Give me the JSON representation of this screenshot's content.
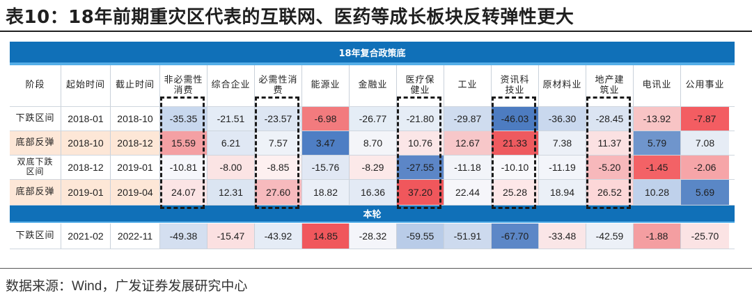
{
  "title": "表10：18年前期重灾区代表的互联网、医药等成长板块反转弹性更大",
  "band_top": "18年复合政策底",
  "band_mid": "本轮",
  "headers": [
    "阶段",
    "起始时间",
    "截止时间",
    "非必需性消费",
    "综合企业",
    "必需性消费",
    "能源业",
    "金融业",
    "医疗保健业",
    "工业",
    "资讯科技业",
    "原材料业",
    "地产建筑业",
    "电讯业",
    "公用事业"
  ],
  "rows": [
    {
      "stage": "下跌区间",
      "start": "2018-01",
      "end": "2018-10",
      "values": [
        "-35.35",
        "-21.51",
        "-23.57",
        "-6.98",
        "-26.77",
        "-21.80",
        "-29.87",
        "-46.03",
        "-36.30",
        "-28.45",
        "-13.92",
        "-7.87"
      ],
      "colors": [
        "#c8d8ee",
        "#e4ecf6",
        "#dde6f3",
        "#f27b7e",
        "#e5edf6",
        "#e6edf6",
        "#cfdcef",
        "#4d7cc1",
        "#c9d8ee",
        "#dbe4f2",
        "#f8c4c5",
        "#f35d62"
      ]
    },
    {
      "stage": "底部反弹",
      "start": "2018-10",
      "end": "2018-12",
      "values": [
        "15.59",
        "6.21",
        "7.57",
        "3.47",
        "8.70",
        "10.76",
        "12.67",
        "21.33",
        "7.38",
        "11.37",
        "5.79",
        "7.08"
      ],
      "colors": [
        "#f4a0a3",
        "#e0e8f4",
        "#eef2f8",
        "#4e7ec4",
        "#f4f5f9",
        "#fbe6e7",
        "#f7c7c9",
        "#ee5a5f",
        "#ecf0f7",
        "#fbe1e2",
        "#6f95cc",
        "#e6ecf5"
      ],
      "stage_bg": "#fde7d7"
    },
    {
      "stage": "双底下跌区间",
      "start": "2018-12",
      "end": "2019-01",
      "values": [
        "-10.81",
        "-8.00",
        "-8.85",
        "-15.76",
        "-8.29",
        "-27.55",
        "-11.18",
        "-10.10",
        "-11.19",
        "-5.20",
        "-1.45",
        "-2.06"
      ],
      "colors": [
        "#f6f7fb",
        "#fbe4e4",
        "#fdf0f0",
        "#e1e8f4",
        "#fce9e9",
        "#5c86c7",
        "#f2f4f9",
        "#f8f8fb",
        "#f3f5fa",
        "#f7b8bb",
        "#f36266",
        "#f6a5a8"
      ]
    },
    {
      "stage": "底部反弹",
      "start": "2019-01",
      "end": "2019-04",
      "values": [
        "24.07",
        "12.31",
        "27.60",
        "18.82",
        "16.36",
        "37.20",
        "22.44",
        "25.28",
        "18.94",
        "26.52",
        "10.28",
        "5.69"
      ],
      "colors": [
        "#fbe4e5",
        "#dbe5f2",
        "#f7babd",
        "#eaeff7",
        "#e3eaf5",
        "#f0575c",
        "#f6f6fa",
        "#fde7e8",
        "#ebf0f7",
        "#fcd7d8",
        "#bfd1eb",
        "#5a87c6"
      ],
      "stage_bg": "#fde7d7"
    },
    {
      "stage": "下跌区间",
      "start": "2021-02",
      "end": "2022-11",
      "values": [
        "-49.38",
        "-15.47",
        "-43.92",
        "14.85",
        "-28.32",
        "-59.55",
        "-51.91",
        "-67.70",
        "-33.48",
        "-42.59",
        "-1.88",
        "-25.70"
      ],
      "colors": [
        "#d4dff0",
        "#fbe0e1",
        "#e5ecf6",
        "#f0575c",
        "#f4f5fa",
        "#b9cce8",
        "#cddaee",
        "#5c87c7",
        "#fae6e7",
        "#ecf0f7",
        "#f49ea1",
        "#fbe3e4"
      ]
    }
  ],
  "source": {
    "prefix": "数据来源：",
    "brand": "Wind",
    "suffix": "，广发证券发展研究中心"
  }
}
